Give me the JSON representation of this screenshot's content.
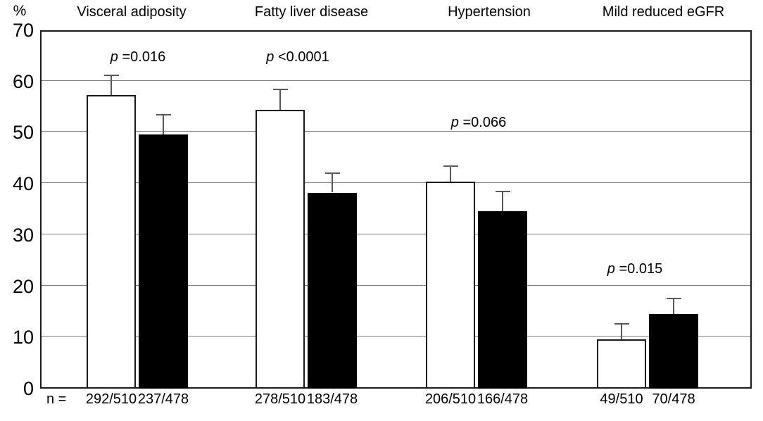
{
  "chart_data": {
    "type": "bar",
    "title": "",
    "unit_label": "%",
    "ylim": [
      0,
      70
    ],
    "yticks": [
      0,
      10,
      20,
      30,
      40,
      50,
      60,
      70
    ],
    "grid": true,
    "legend_position": "none",
    "categories": [
      "Visceral adiposity",
      "Fatty liver disease",
      "Hypertension",
      "Mild reduced eGFR"
    ],
    "series": [
      {
        "name": "open-bars",
        "fill": "#ffffff",
        "border": "#1a1a1a",
        "values": [
          57.3,
          54.5,
          40.4,
          9.6
        ],
        "error_upper": [
          61.3,
          58.6,
          43.6,
          12.8
        ],
        "n_labels": [
          "292/510",
          "278/510",
          "206/510",
          "49/510"
        ]
      },
      {
        "name": "filled-bars",
        "fill": "#000000",
        "border": "#000000",
        "values": [
          49.6,
          38.3,
          34.7,
          14.6
        ],
        "error_upper": [
          53.7,
          42.2,
          38.7,
          17.7
        ],
        "n_labels": [
          "237/478",
          "183/478",
          "166/478",
          "70/478"
        ]
      }
    ],
    "p_values": [
      {
        "symbol": "p",
        "text": "=0.016"
      },
      {
        "symbol": "p",
        "text": "<0.0001"
      },
      {
        "symbol": "p",
        "text": "=0.066"
      },
      {
        "symbol": "p",
        "text": "=0.015"
      }
    ],
    "n_prefix": "n =",
    "colors": {
      "gridline": "#808080",
      "axis_border": "#1a1a1a",
      "error_bar": "#595959",
      "text": "#000000"
    }
  }
}
